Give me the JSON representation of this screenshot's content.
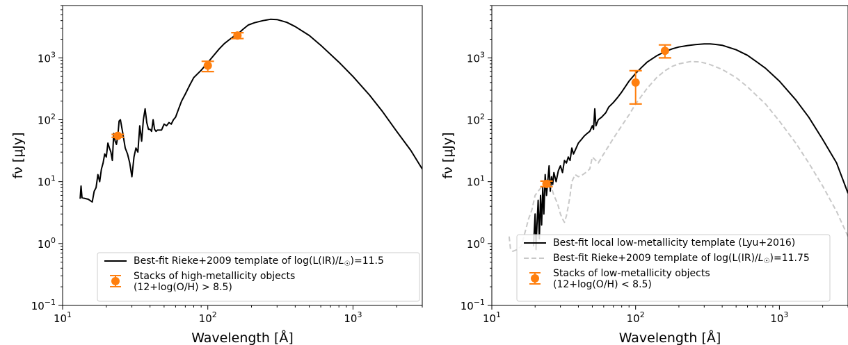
{
  "chart_data": [
    {
      "type": "line",
      "title": "",
      "xlabel": "Wavelength [Å]",
      "ylabel": "fν [μJy]",
      "xscale": "log",
      "yscale": "log",
      "xlim": [
        10,
        3000
      ],
      "ylim": [
        0.1,
        7000
      ],
      "x_ticks": [
        {
          "value": 10,
          "base": "10",
          "exp": "1"
        },
        {
          "value": 100,
          "base": "10",
          "exp": "2"
        },
        {
          "value": 1000,
          "base": "10",
          "exp": "3"
        }
      ],
      "y_ticks": [
        {
          "value": 0.1,
          "base": "10",
          "exp": "−1"
        },
        {
          "value": 1,
          "base": "10",
          "exp": "0"
        },
        {
          "value": 10,
          "base": "10",
          "exp": "1"
        },
        {
          "value": 100,
          "base": "10",
          "exp": "2"
        },
        {
          "value": 1000,
          "base": "10",
          "exp": "3"
        }
      ],
      "grid": false,
      "legend_position": "lower-right",
      "series": [
        {
          "name": "Best-fit Rieke+2009 template of log(L(IR)/L☉)=11.5",
          "kind": "line",
          "color": "#000000",
          "dash": "solid",
          "x": [
            13.2,
            13.4,
            13.6,
            14,
            15,
            16,
            16.5,
            17,
            17.5,
            18,
            18.5,
            19,
            19.5,
            20,
            20.5,
            21,
            21.5,
            22,
            22.5,
            23,
            23.5,
            24,
            24.5,
            25,
            26,
            27,
            28,
            29,
            30,
            31,
            32,
            33,
            34,
            35,
            36,
            37,
            38,
            39,
            40,
            41,
            42,
            43,
            44,
            45,
            46,
            48,
            50,
            52,
            54,
            56,
            58,
            60,
            63,
            66,
            70,
            75,
            80,
            90,
            100,
            110,
            120,
            130,
            140,
            150,
            160,
            175,
            190,
            210,
            240,
            270,
            300,
            350,
            400,
            500,
            600,
            800,
            1000,
            1300,
            1600,
            2000,
            2500,
            3000
          ],
          "y": [
            5.3,
            8.5,
            5.5,
            5.4,
            5.2,
            4.7,
            7.0,
            8.0,
            13,
            10,
            16,
            20,
            28,
            25,
            42,
            35,
            30,
            22,
            60,
            45,
            40,
            55,
            95,
            100,
            60,
            35,
            28,
            20,
            12,
            25,
            35,
            30,
            80,
            45,
            100,
            150,
            90,
            70,
            70,
            65,
            100,
            70,
            65,
            68,
            68,
            68,
            85,
            80,
            90,
            85,
            100,
            110,
            150,
            200,
            260,
            360,
            480,
            630,
            840,
            1100,
            1400,
            1700,
            1950,
            2200,
            2400,
            2900,
            3400,
            3700,
            4000,
            4200,
            4150,
            3750,
            3200,
            2300,
            1600,
            850,
            500,
            250,
            135,
            65,
            32,
            16
          ]
        },
        {
          "name": "Stacks of high-metallicity objects\n(12+log(O/H) > 8.5)",
          "kind": "errorbar",
          "color": "#ff7f0e",
          "points": [
            {
              "x": 24,
              "y": 55,
              "ylow": 52,
              "yhigh": 58,
              "xerr": [
                22.5,
                25.7
              ]
            },
            {
              "x": 100,
              "y": 750,
              "ylow": 600,
              "yhigh": 880
            },
            {
              "x": 160,
              "y": 2300,
              "ylow": 2050,
              "yhigh": 2550
            }
          ]
        }
      ]
    },
    {
      "type": "line",
      "title": "",
      "xlabel": "Wavelength [Å]",
      "ylabel": "fν [μJy]",
      "xscale": "log",
      "yscale": "log",
      "xlim": [
        10,
        3000
      ],
      "ylim": [
        0.1,
        7000
      ],
      "x_ticks": [
        {
          "value": 10,
          "base": "10",
          "exp": "1"
        },
        {
          "value": 100,
          "base": "10",
          "exp": "2"
        },
        {
          "value": 1000,
          "base": "10",
          "exp": "3"
        }
      ],
      "y_ticks": [
        {
          "value": 0.1,
          "base": "10",
          "exp": "−1"
        },
        {
          "value": 1,
          "base": "10",
          "exp": "0"
        },
        {
          "value": 10,
          "base": "10",
          "exp": "1"
        },
        {
          "value": 100,
          "base": "10",
          "exp": "2"
        },
        {
          "value": 1000,
          "base": "10",
          "exp": "3"
        }
      ],
      "grid": false,
      "legend_position": "lower-right",
      "series": [
        {
          "name": "Best-fit local low-metallicity template (Lyu+2016)",
          "kind": "line",
          "color": "#000000",
          "dash": "solid",
          "x": [
            19.5,
            19.7,
            20,
            20.3,
            20.6,
            21,
            21.4,
            21.8,
            22.2,
            22.6,
            23,
            23.5,
            24,
            24.5,
            25,
            25.5,
            26,
            26.5,
            27,
            28,
            29,
            30,
            31,
            32,
            33,
            34,
            35,
            36,
            37,
            38,
            40,
            42,
            44,
            46,
            48,
            50,
            51,
            52,
            53,
            55,
            58,
            62,
            65,
            70,
            75,
            80,
            90,
            100,
            110,
            120,
            140,
            160,
            180,
            200,
            230,
            260,
            300,
            330,
            360,
            400,
            500,
            600,
            700,
            800,
            1000,
            1300,
            1600,
            2000,
            2500,
            3000
          ],
          "y": [
            0.9,
            1.5,
            3,
            0.8,
            2,
            5,
            1.2,
            6,
            2,
            8,
            3,
            13,
            6,
            10,
            18,
            7,
            12,
            9,
            14,
            10,
            15,
            18,
            14,
            22,
            20,
            25,
            22,
            35,
            28,
            32,
            42,
            48,
            55,
            60,
            65,
            80,
            70,
            150,
            80,
            100,
            110,
            130,
            160,
            190,
            230,
            280,
            420,
            560,
            700,
            850,
            1080,
            1260,
            1400,
            1500,
            1580,
            1640,
            1680,
            1680,
            1650,
            1600,
            1350,
            1100,
            850,
            680,
            420,
            210,
            110,
            48,
            20,
            6.5
          ]
        },
        {
          "name": "Best-fit Rieke+2009 template of log(L(IR)/L☉)=11.75",
          "kind": "line",
          "color": "#c8c8c8",
          "dash": "dashed",
          "x": [
            13.2,
            13.5,
            14,
            15,
            16,
            17,
            18,
            19,
            20,
            21,
            22,
            23,
            24,
            25,
            26,
            27,
            28,
            29,
            30,
            31,
            32,
            33,
            34,
            35,
            36,
            38,
            40,
            42,
            45,
            48,
            50,
            55,
            60,
            70,
            80,
            90,
            100,
            120,
            140,
            160,
            180,
            200,
            240,
            280,
            320,
            400,
            500,
            600,
            800,
            1000,
            1300,
            1600,
            2000,
            2500,
            3000
          ],
          "y": [
            1.3,
            0.8,
            0.75,
            0.8,
            0.9,
            1.5,
            2.5,
            3.5,
            6,
            7,
            8,
            9,
            10,
            9,
            8,
            6,
            5,
            4,
            3,
            2.5,
            2.2,
            2.8,
            4,
            6,
            10,
            13,
            12,
            12.5,
            14,
            16,
            25,
            20,
            28,
            50,
            80,
            120,
            180,
            320,
            480,
            620,
            730,
            800,
            870,
            860,
            800,
            650,
            480,
            340,
            180,
            95,
            42,
            20,
            8.5,
            3.3,
            1.3
          ]
        },
        {
          "name": "Stacks of low-metallicity objects\n(12+log(O/H) < 8.5)",
          "kind": "errorbar",
          "color": "#ff7f0e",
          "points": [
            {
              "x": 24,
              "y": 9.2,
              "ylow": 8.3,
              "yhigh": 10.2,
              "xerr": [
                22.5,
                25.7
              ]
            },
            {
              "x": 100,
              "y": 400,
              "ylow": 180,
              "yhigh": 620
            },
            {
              "x": 160,
              "y": 1300,
              "ylow": 1000,
              "yhigh": 1620
            }
          ]
        }
      ]
    }
  ]
}
